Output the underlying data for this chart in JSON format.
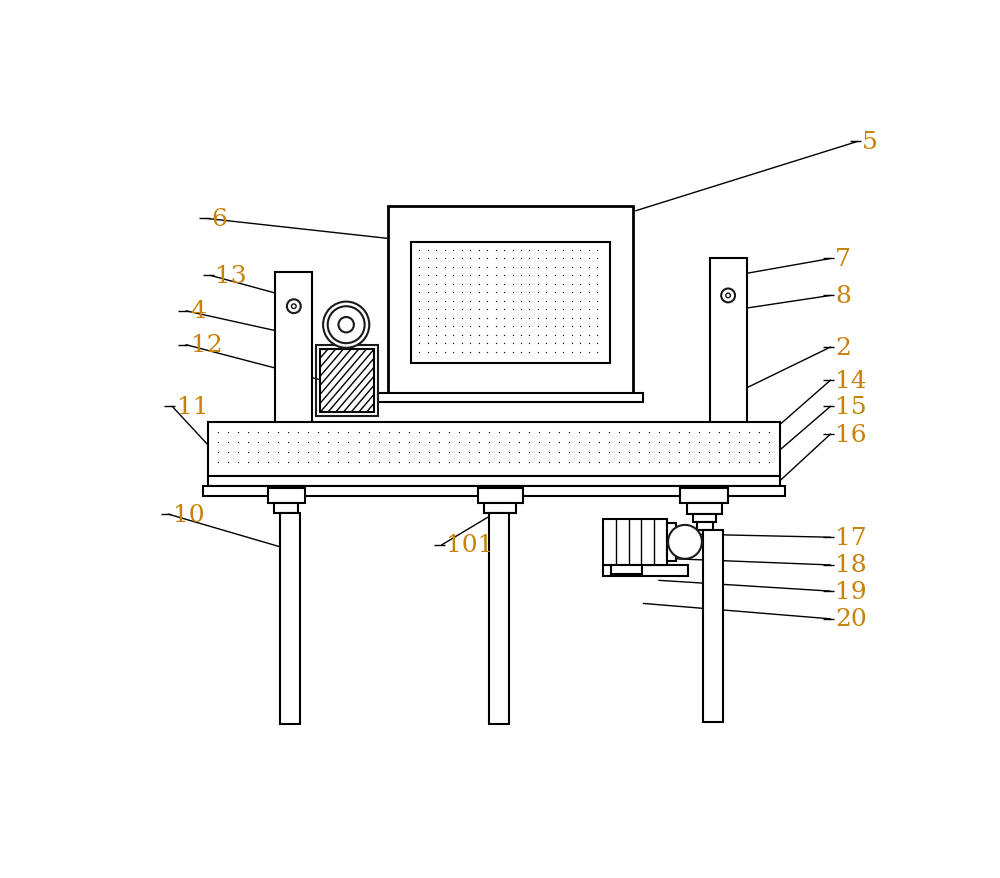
{
  "bg_color": "#ffffff",
  "line_color": "#1a1a1a",
  "label_color": "#c8820a",
  "fig_width": 10.0,
  "fig_height": 8.79,
  "labels_data": [
    [
      "5",
      950,
      48,
      660,
      138
    ],
    [
      "6",
      105,
      148,
      348,
      175
    ],
    [
      "7",
      915,
      200,
      800,
      220
    ],
    [
      "8",
      915,
      248,
      800,
      265
    ],
    [
      "13",
      110,
      222,
      218,
      252
    ],
    [
      "4",
      78,
      268,
      198,
      295
    ],
    [
      "12",
      78,
      312,
      252,
      358
    ],
    [
      "2",
      915,
      315,
      800,
      370
    ],
    [
      "14",
      915,
      358,
      848,
      415
    ],
    [
      "11",
      60,
      392,
      110,
      448
    ],
    [
      "15",
      915,
      392,
      848,
      448
    ],
    [
      "16",
      915,
      428,
      848,
      488
    ],
    [
      "10",
      55,
      532,
      200,
      575
    ],
    [
      "101",
      410,
      572,
      478,
      530
    ],
    [
      "17",
      915,
      562,
      730,
      558
    ],
    [
      "18",
      915,
      598,
      710,
      590
    ],
    [
      "19",
      915,
      632,
      690,
      618
    ],
    [
      "20",
      915,
      668,
      670,
      648
    ]
  ]
}
